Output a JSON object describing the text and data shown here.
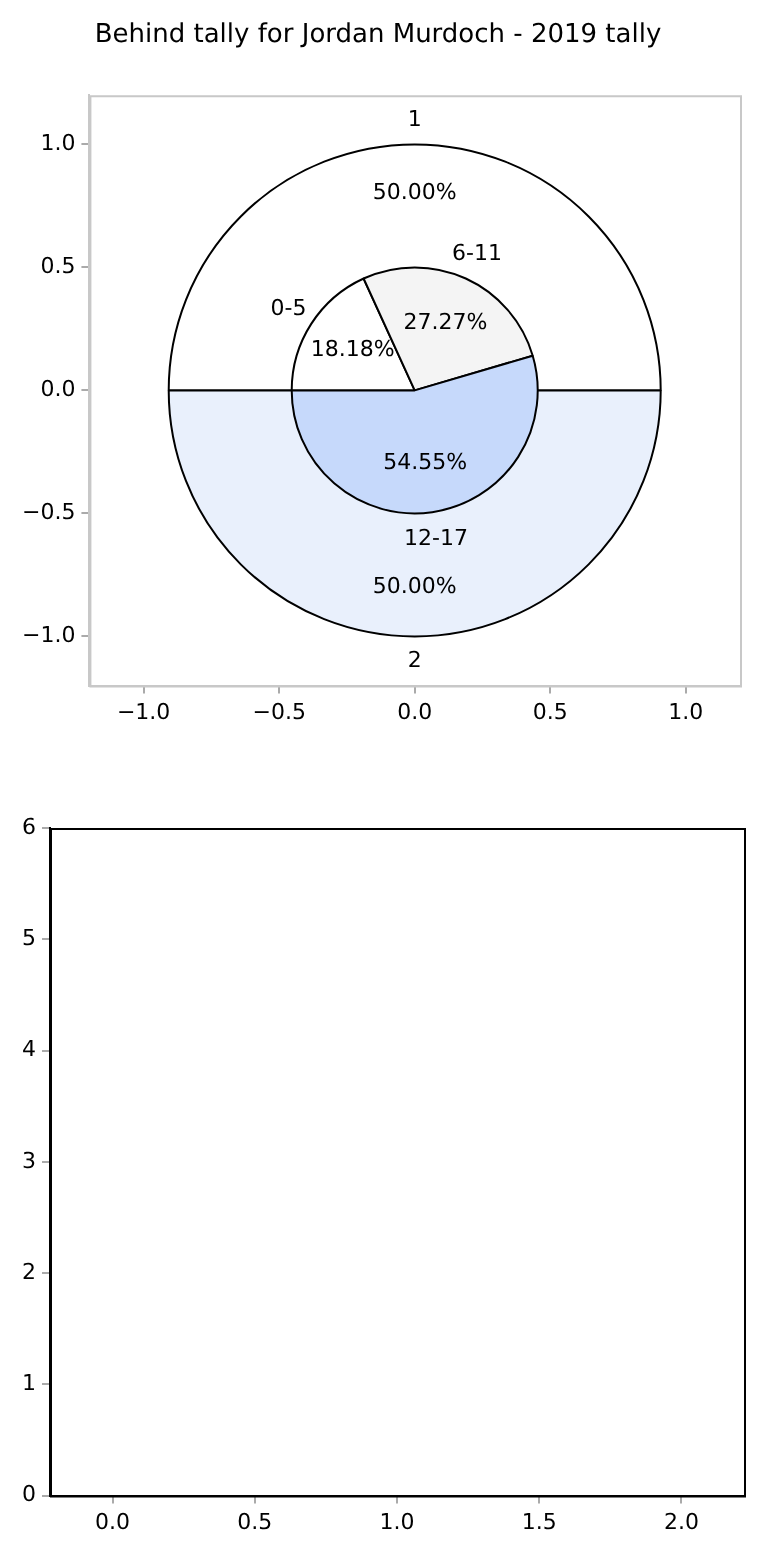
{
  "chart_data": [
    {
      "type": "scatter",
      "title": "Behind tally for Jordan Murdoch - 2019 tally",
      "xlim": [
        -1.2,
        1.2
      ],
      "ylim": [
        -1.2,
        1.2
      ],
      "xticks": [
        {
          "value": -1,
          "label": "−1.0"
        },
        {
          "value": -0.5,
          "label": "−0.5"
        },
        {
          "value": 0,
          "label": "0.0"
        },
        {
          "value": 0.5,
          "label": "0.5"
        },
        {
          "value": 1,
          "label": "1.0"
        }
      ],
      "yticks": [
        {
          "value": -1,
          "label": "−1.0"
        },
        {
          "value": -0.5,
          "label": "−0.5"
        },
        {
          "value": 0,
          "label": "0.0"
        },
        {
          "value": 0.5,
          "label": "0.5"
        },
        {
          "value": 1,
          "label": "1.0"
        }
      ]
    },
    {
      "type": "pie",
      "categories": [
        "1",
        "2"
      ],
      "values": [
        50,
        50
      ],
      "colors": [
        "#ffffff",
        "#e9f0fc"
      ],
      "value_labels": [
        "50.00%",
        "50.00%"
      ]
    },
    {
      "type": "pie",
      "categories": [
        "0-5",
        "6-11",
        "12-17"
      ],
      "values": [
        18.18,
        27.27,
        54.55
      ],
      "colors": [
        "#ffffff",
        "#f4f4f4",
        "#c6d9fb"
      ],
      "value_labels": [
        "18.18%",
        "27.27%",
        "54.55%"
      ]
    },
    {
      "type": "scatter",
      "xlim": [
        -0.22,
        2.22
      ],
      "ylim": [
        0,
        6
      ],
      "xticks": [
        {
          "value": 0,
          "label": "0.0"
        },
        {
          "value": 0.5,
          "label": "0.5"
        },
        {
          "value": 1,
          "label": "1.0"
        },
        {
          "value": 1.5,
          "label": "1.5"
        },
        {
          "value": 2,
          "label": "2.0"
        }
      ],
      "yticks": [
        0,
        1,
        2,
        3,
        4,
        5,
        6
      ]
    }
  ]
}
